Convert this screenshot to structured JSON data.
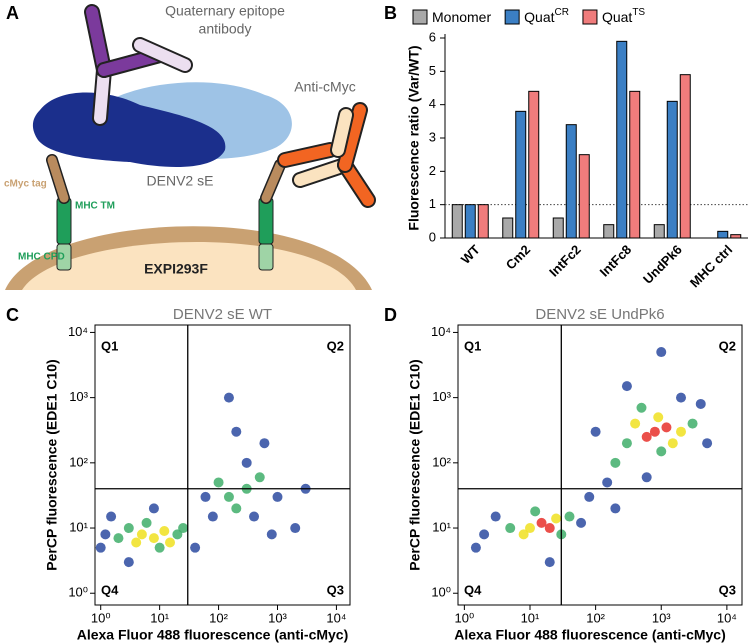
{
  "panel_letters": [
    "A",
    "B",
    "C",
    "D"
  ],
  "panel_a": {
    "antibody_label": [
      "Quaternary epitope",
      "antibody"
    ],
    "anti_cmyc": "Anti-cMyc",
    "protein": "DENV2 sE",
    "tag": "cMyc tag",
    "tm": "MHC TM",
    "cpd": "MHC CPD",
    "cell": "EXPI293F"
  },
  "chart_data": [
    {
      "type": "bar",
      "ylabel": "Fluorescence ratio (Var/WT)",
      "categories": [
        "WT",
        "Cm2",
        "IntFc2",
        "IntFc8",
        "UndPk6",
        "MHC ctrl"
      ],
      "series": [
        {
          "name": "Monomer",
          "color": "#a9a9a9",
          "values": [
            1,
            0.6,
            0.6,
            0.4,
            0.4,
            null
          ]
        },
        {
          "name": "Quat",
          "superscript": "CR",
          "color": "#3b7fc4",
          "values": [
            1,
            3.8,
            3.4,
            5.9,
            4.1,
            0.2
          ]
        },
        {
          "name": "Quat",
          "superscript": "TS",
          "color": "#f07c7c",
          "values": [
            1,
            4.4,
            2.5,
            4.4,
            4.9,
            0.1
          ]
        }
      ],
      "ylim": [
        0,
        6
      ],
      "yticks": [
        0,
        1,
        2,
        3,
        4,
        5,
        6
      ],
      "refline": 1
    },
    {
      "type": "scatter",
      "title": "DENV2 sE WT",
      "log": true,
      "xlabel": "Alexa Fluor 488 fluorescence (anti-cMyc)",
      "ylabel": "PerCP fluorescence (EDE1 C10)",
      "xlim": [
        0.8,
        17000
      ],
      "ylim": [
        0.66,
        13000
      ],
      "xticks": [
        {
          "value": 1,
          "label": "10⁰"
        },
        {
          "value": 10,
          "label": "10¹"
        },
        {
          "value": 100,
          "label": "10²"
        },
        {
          "value": 1000,
          "label": "10³"
        },
        {
          "value": 10000,
          "label": "10⁴"
        }
      ],
      "yticks": [
        {
          "value": 1,
          "label": "10⁰"
        },
        {
          "value": 10,
          "label": "10¹"
        },
        {
          "value": 100,
          "label": "10²"
        },
        {
          "value": 1000,
          "label": "10³"
        },
        {
          "value": 10000,
          "label": "10⁴"
        }
      ],
      "gate_x": 30,
      "gate_y": 40,
      "quadrant_labels": [
        "Q1",
        "Q2",
        "Q3",
        "Q4"
      ],
      "x": [
        1.2,
        1.5,
        40,
        3,
        8,
        1,
        80,
        1000,
        600,
        2000,
        300,
        200,
        800,
        3000,
        150,
        60,
        400,
        3,
        20,
        2,
        6,
        25,
        10,
        150,
        300,
        200,
        500,
        100,
        5,
        8,
        12,
        4,
        15
      ],
      "y": [
        8,
        15,
        5,
        3,
        20,
        5,
        15,
        30,
        200,
        10,
        100,
        300,
        8,
        40,
        1000,
        30,
        15,
        10,
        8,
        7,
        12,
        10,
        5,
        30,
        40,
        20,
        60,
        50,
        8,
        7,
        9,
        6,
        6
      ],
      "colors": [
        "#2b4aa0",
        "#2b4aa0",
        "#2b4aa0",
        "#2b4aa0",
        "#2b4aa0",
        "#2b4aa0",
        "#2b4aa0",
        "#2b4aa0",
        "#2b4aa0",
        "#2b4aa0",
        "#2b4aa0",
        "#2b4aa0",
        "#2b4aa0",
        "#2b4aa0",
        "#2b4aa0",
        "#2b4aa0",
        "#2b4aa0",
        "#3fae6a",
        "#3fae6a",
        "#3fae6a",
        "#3fae6a",
        "#3fae6a",
        "#3fae6a",
        "#3fae6a",
        "#3fae6a",
        "#3fae6a",
        "#3fae6a",
        "#3fae6a",
        "#f0e020",
        "#f0e020",
        "#f0e020",
        "#f0e020",
        "#f0e020"
      ]
    },
    {
      "type": "scatter",
      "title": "DENV2 sE UndPk6",
      "log": true,
      "xlabel": "Alexa Fluor 488 fluorescence (anti-cMyc)",
      "ylabel": "PerCP fluorescence (EDE1 C10)",
      "xlim": [
        0.8,
        17000
      ],
      "ylim": [
        0.66,
        13000
      ],
      "xticks": [
        {
          "value": 1,
          "label": "10⁰"
        },
        {
          "value": 10,
          "label": "10¹"
        },
        {
          "value": 100,
          "label": "10²"
        },
        {
          "value": 1000,
          "label": "10³"
        },
        {
          "value": 10000,
          "label": "10⁴"
        }
      ],
      "yticks": [
        {
          "value": 1,
          "label": "10⁰"
        },
        {
          "value": 10,
          "label": "10¹"
        },
        {
          "value": 100,
          "label": "10²"
        },
        {
          "value": 1000,
          "label": "10³"
        },
        {
          "value": 10000,
          "label": "10⁴"
        }
      ],
      "gate_x": 30,
      "gate_y": 40,
      "quadrant_labels": [
        "Q1",
        "Q2",
        "Q3",
        "Q4"
      ],
      "x": [
        2,
        3,
        60,
        1.5,
        20,
        80,
        150,
        4000,
        100,
        600,
        5000,
        300,
        2000,
        200,
        1000,
        5,
        30,
        12,
        40,
        300,
        3000,
        500,
        1000,
        200,
        10,
        25,
        8,
        400,
        1500,
        900,
        2000,
        15,
        20,
        800,
        1200,
        600
      ],
      "y": [
        8,
        15,
        12,
        5,
        3,
        30,
        50,
        800,
        300,
        60,
        200,
        1500,
        1000,
        20,
        5000,
        10,
        8,
        18,
        15,
        200,
        400,
        700,
        150,
        100,
        10,
        14,
        8,
        400,
        200,
        500,
        300,
        12,
        10,
        300,
        350,
        250
      ],
      "colors": [
        "#2b4aa0",
        "#2b4aa0",
        "#2b4aa0",
        "#2b4aa0",
        "#2b4aa0",
        "#2b4aa0",
        "#2b4aa0",
        "#2b4aa0",
        "#2b4aa0",
        "#2b4aa0",
        "#2b4aa0",
        "#2b4aa0",
        "#2b4aa0",
        "#2b4aa0",
        "#2b4aa0",
        "#3fae6a",
        "#3fae6a",
        "#3fae6a",
        "#3fae6a",
        "#3fae6a",
        "#3fae6a",
        "#3fae6a",
        "#3fae6a",
        "#3fae6a",
        "#f0e020",
        "#f0e020",
        "#f0e020",
        "#f0e020",
        "#f0e020",
        "#f0e020",
        "#f0e020",
        "#e8302a",
        "#e8302a",
        "#e8302a",
        "#e8302a",
        "#e8302a"
      ]
    }
  ]
}
